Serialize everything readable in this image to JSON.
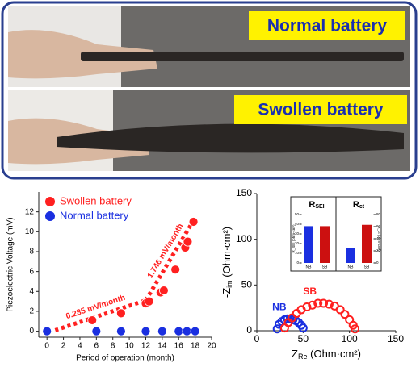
{
  "photo_panel": {
    "labels": [
      "Normal battery",
      "Swollen battery"
    ]
  },
  "chart_data": [
    {
      "type": "scatter",
      "x_label": "Period of operation (month)",
      "y_label": "Piezoelectric Voltage (mV)",
      "xlim": [
        -1,
        20
      ],
      "xticks": [
        0,
        2,
        4,
        6,
        8,
        10,
        12,
        14,
        16,
        18,
        20
      ],
      "ylim": [
        -0.6,
        14
      ],
      "yticks": [
        0,
        2,
        4,
        6,
        8,
        10,
        12
      ],
      "legend": "upper left",
      "series": [
        {
          "name": "Swollen battery",
          "color": "#ff2020",
          "x": [
            5.5,
            9,
            12,
            12.4,
            13.8,
            14.2,
            15.6,
            16.8,
            17.1,
            17.8
          ],
          "y": [
            1.1,
            1.8,
            2.8,
            3,
            3.9,
            4.1,
            6.2,
            8.4,
            9,
            11
          ]
        },
        {
          "name": "Normal battery",
          "color": "#1a2fe0",
          "x": [
            0,
            6,
            9,
            12,
            14,
            16,
            17,
            18
          ],
          "y": [
            0,
            0,
            0,
            0,
            0,
            0,
            0,
            0
          ]
        }
      ],
      "trend_lines": [
        {
          "label": "0.285 mV/month",
          "color": "#ff2020",
          "x": [
            1,
            12
          ],
          "y": [
            0.1,
            3.1
          ]
        },
        {
          "label": "1.746 mV/month",
          "color": "#ff2020",
          "x": [
            12,
            18
          ],
          "y": [
            3.1,
            11.4
          ]
        }
      ]
    },
    {
      "type": "nyquist",
      "x_label": "Z",
      "x_label_sub": "Re",
      "x_label_unit": " (Ohm·cm²)",
      "y_label": "-Z",
      "y_label_sub": "im",
      "y_label_unit": " (Ohm·cm²)",
      "xlim": [
        0,
        150
      ],
      "xticks": [
        0,
        50,
        100,
        150
      ],
      "ylim": [
        0,
        150
      ],
      "yticks": [
        0,
        50,
        100,
        150
      ],
      "series": [
        {
          "name": "NB",
          "color": "#1a2fe0",
          "x": [
            22,
            24,
            27,
            30,
            33,
            36,
            39,
            42,
            45,
            48,
            50
          ],
          "y": [
            2,
            7,
            10,
            12,
            13,
            13,
            12,
            11,
            9,
            6,
            3
          ]
        },
        {
          "name": "SB",
          "color": "#ff2020",
          "x": [
            30,
            34,
            38,
            43,
            48,
            54,
            60,
            66,
            72,
            78,
            84,
            90,
            95,
            100,
            104,
            106
          ],
          "y": [
            3,
            9,
            14,
            19,
            23,
            26,
            28,
            30,
            30,
            29,
            27,
            23,
            18,
            12,
            6,
            2
          ]
        }
      ]
    },
    {
      "type": "inset_bar",
      "panels": [
        {
          "label": "R",
          "label_sub": "SEI",
          "y_label": "R_SEI (ohm·cm²)",
          "categories": [
            "NB",
            "SB"
          ],
          "values": [
            38,
            38
          ],
          "colors": [
            "#1a2fe0",
            "#cc1010"
          ],
          "ylim": [
            0,
            50
          ],
          "yticks": [
            0,
            10,
            20,
            30,
            40,
            50
          ]
        },
        {
          "label": "R",
          "label_sub": "ct",
          "y_label": "R_ct (ohm·cm²)",
          "categories": [
            "NB",
            "SB"
          ],
          "values": [
            25,
            63
          ],
          "colors": [
            "#1a2fe0",
            "#cc1010"
          ],
          "ylim": [
            0,
            80
          ],
          "yticks": [
            0,
            20,
            40,
            60,
            80
          ]
        }
      ]
    }
  ]
}
